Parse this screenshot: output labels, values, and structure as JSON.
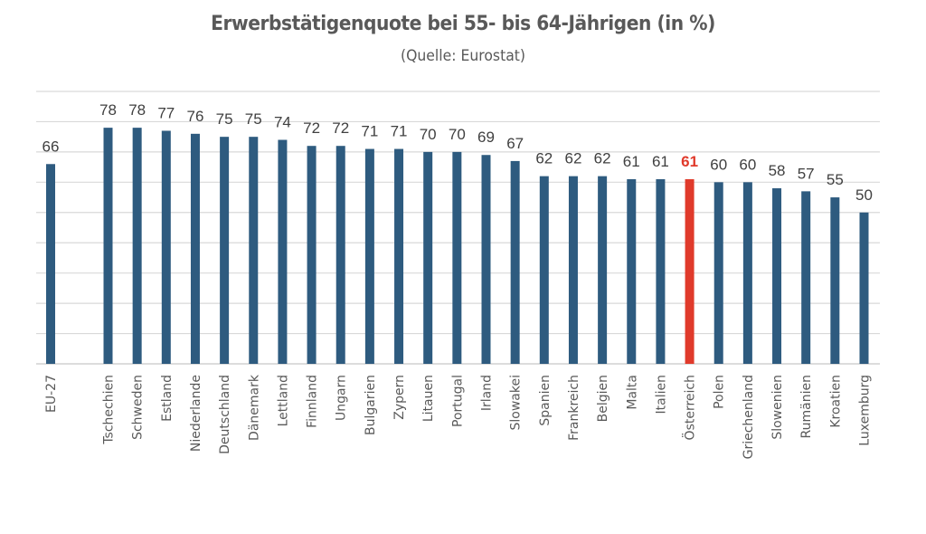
{
  "chart_data": {
    "type": "bar",
    "title": "Erwerbstätigenquote bei 55- bis 64-Jährigen (in %)",
    "subtitle": "(Quelle: Eurostat)",
    "xlabel": "",
    "ylabel": "",
    "ylim": [
      0,
      90
    ],
    "grid": true,
    "grid_step": 10,
    "legend": "none",
    "colors": {
      "default": "#2e5b7f",
      "highlight": "#e03a2b",
      "highlight_label": "#e03a2b",
      "label": "#404040"
    },
    "highlight": "Österreich",
    "gap_after_first": true,
    "categories": [
      "EU-27",
      "Tschechien",
      "Schweden",
      "Estland",
      "Niederlande",
      "Deutschland",
      "Dänemark",
      "Lettland",
      "Finnland",
      "Ungarn",
      "Bulgarien",
      "Zypern",
      "Litauen",
      "Portugal",
      "Irland",
      "Slowakei",
      "Spanien",
      "Frankreich",
      "Belgien",
      "Malta",
      "Italien",
      "Österreich",
      "Polen",
      "Griechenland",
      "Slowenien",
      "Rumänien",
      "Kroatien",
      "Luxemburg"
    ],
    "values": [
      66,
      78,
      78,
      77,
      76,
      75,
      75,
      74,
      72,
      72,
      71,
      71,
      70,
      70,
      69,
      67,
      62,
      62,
      62,
      61,
      61,
      61,
      60,
      60,
      58,
      57,
      55,
      50
    ]
  }
}
